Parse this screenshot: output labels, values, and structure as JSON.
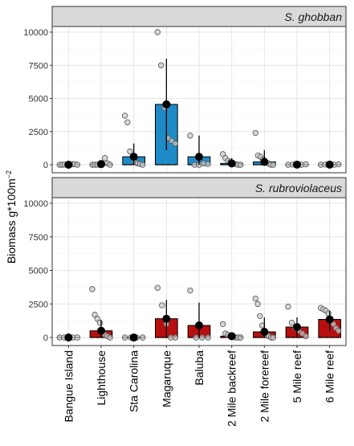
{
  "chart_data": {
    "type": "bar",
    "ylabel_main": "Biomass g*100m",
    "ylabel_sup": "−2",
    "categories": [
      "Bangue Island",
      "Lighthouse",
      "Sta Carolina",
      "Magaruque",
      "Baluba",
      "2 Mile backreef",
      "2 Mile forereef",
      "5 Mile reef",
      "6 Mile reef"
    ],
    "yticks": [
      "0",
      "2500",
      "5000",
      "7500",
      "10000"
    ],
    "ylim": [
      0,
      10500
    ],
    "grid": true,
    "panels": [
      {
        "title": "S. ghobban",
        "color": "#1f8bc6",
        "means": [
          0,
          50,
          600,
          4550,
          600,
          100,
          220,
          10,
          10
        ],
        "err_low": [
          0,
          0,
          0,
          1100,
          0,
          0,
          0,
          0,
          0
        ],
        "err_high": [
          0,
          200,
          1600,
          8000,
          2200,
          500,
          1100,
          40,
          40
        ],
        "points": [
          [
            0,
            0,
            10,
            20,
            0,
            30,
            50,
            0
          ],
          [
            0,
            0,
            0,
            30,
            50,
            500,
            100,
            0
          ],
          [
            3700,
            3200,
            1000,
            600,
            200,
            100,
            50,
            0
          ],
          [
            10000,
            7500,
            4300,
            2000,
            1800,
            1600
          ],
          [
            2200,
            0,
            0,
            100,
            50
          ],
          [
            800,
            500,
            300,
            200,
            100,
            50,
            0,
            0
          ],
          [
            2400,
            700,
            600,
            400,
            200,
            100,
            0,
            0
          ],
          [
            0,
            10,
            20,
            0,
            30
          ],
          [
            0,
            20,
            10,
            0,
            30
          ]
        ]
      },
      {
        "title": "S. rubroviolaceus",
        "color": "#b70f0f",
        "means": [
          0,
          500,
          0,
          1400,
          900,
          100,
          420,
          780,
          1350
        ],
        "err_low": [
          0,
          0,
          0,
          0,
          0,
          0,
          0,
          0,
          500
        ],
        "err_high": [
          0,
          1300,
          0,
          2800,
          2600,
          300,
          1500,
          1500,
          2000
        ],
        "points": [
          [
            0,
            0,
            0,
            0,
            0
          ],
          [
            3600,
            1700,
            1400,
            1100,
            500,
            200,
            100,
            0
          ],
          [
            0,
            0,
            0,
            0
          ],
          [
            3700,
            2400,
            1000,
            0,
            0
          ],
          [
            3500,
            0,
            0,
            0
          ],
          [
            1000,
            300,
            200,
            100,
            50,
            0,
            0,
            0
          ],
          [
            2900,
            2500,
            1600,
            900,
            500,
            200,
            100,
            0,
            0
          ],
          [
            2300,
            1100,
            700,
            500,
            300,
            100
          ],
          [
            2200,
            2100,
            2000,
            1800,
            1300,
            1000,
            700,
            500
          ]
        ]
      }
    ]
  }
}
